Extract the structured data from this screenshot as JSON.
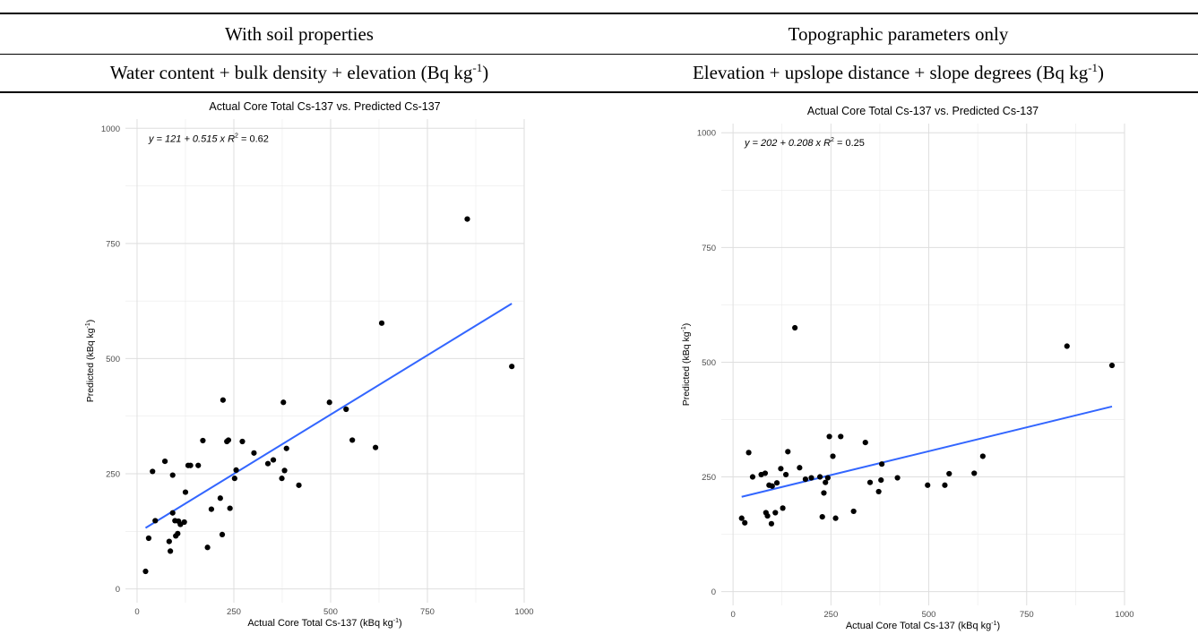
{
  "table": {
    "col1_header": "With soil properties",
    "col2_header": "Topographic parameters only",
    "col1_model": {
      "text": "Water content + bulk density + elevation (Bq kg",
      "sup": "-1",
      "close": ")"
    },
    "col2_model": {
      "text": "Elevation + upslope distance + slope degrees (Bq kg",
      "sup": "-1",
      "close": ")"
    }
  },
  "chart_data": [
    {
      "type": "scatter",
      "title": "Actual Core Total Cs-137 vs. Predicted Cs-137",
      "xlabel": {
        "text": "Actual Core Total Cs-137 (kBq kg",
        "sup": "-1",
        "close": ")"
      },
      "ylabel": {
        "text": "Predicted (kBq kg",
        "sup": "-1",
        "close": ")"
      },
      "xlim": [
        -30,
        1000
      ],
      "ylim": [
        -30,
        1020
      ],
      "xticks": [
        0,
        250,
        500,
        750,
        1000
      ],
      "yticks": [
        0,
        250,
        500,
        750,
        1000
      ],
      "grid": true,
      "equation": {
        "pre": "y = 121 + 0.515 x",
        "r2_label": "R",
        "r2_sup": "2",
        "r2_value": " = 0.62"
      },
      "fit": {
        "intercept": 121,
        "slope": 0.515,
        "x_range": [
          22,
          968
        ],
        "color": "#3366FF"
      },
      "points": [
        [
          22,
          38
        ],
        [
          30,
          110
        ],
        [
          40,
          255
        ],
        [
          47,
          148
        ],
        [
          72,
          277
        ],
        [
          83,
          103
        ],
        [
          86,
          82
        ],
        [
          92,
          165
        ],
        [
          92,
          247
        ],
        [
          98,
          148
        ],
        [
          100,
          115
        ],
        [
          105,
          120
        ],
        [
          107,
          147
        ],
        [
          112,
          140
        ],
        [
          122,
          145
        ],
        [
          125,
          210
        ],
        [
          132,
          268
        ],
        [
          138,
          268
        ],
        [
          158,
          268
        ],
        [
          170,
          322
        ],
        [
          182,
          90
        ],
        [
          192,
          173
        ],
        [
          215,
          197
        ],
        [
          220,
          118
        ],
        [
          222,
          410
        ],
        [
          232,
          320
        ],
        [
          236,
          323
        ],
        [
          240,
          175
        ],
        [
          252,
          240
        ],
        [
          256,
          258
        ],
        [
          272,
          320
        ],
        [
          302,
          295
        ],
        [
          338,
          272
        ],
        [
          352,
          280
        ],
        [
          374,
          240
        ],
        [
          378,
          405
        ],
        [
          381,
          257
        ],
        [
          386,
          305
        ],
        [
          418,
          225
        ],
        [
          497,
          405
        ],
        [
          540,
          390
        ],
        [
          556,
          323
        ],
        [
          616,
          307
        ],
        [
          632,
          577
        ],
        [
          853,
          803
        ],
        [
          968,
          483
        ]
      ]
    },
    {
      "type": "scatter",
      "title": "Actual Core Total Cs-137 vs. Predicted Cs-137",
      "xlabel": {
        "text": "Actual Core Total Cs-137 (kBq kg",
        "sup": "-1",
        "close": ")"
      },
      "ylabel": {
        "text": "Predicted (kBq kg",
        "sup": "-1",
        "close": ")"
      },
      "xlim": [
        -30,
        1000
      ],
      "ylim": [
        -30,
        1020
      ],
      "xticks": [
        0,
        250,
        500,
        750,
        1000
      ],
      "yticks": [
        0,
        250,
        500,
        750,
        1000
      ],
      "grid": true,
      "equation": {
        "pre": "y = 202 + 0.208 x",
        "r2_label": "R",
        "r2_sup": "2",
        "r2_value": " = 0.25"
      },
      "fit": {
        "intercept": 202,
        "slope": 0.208,
        "x_range": [
          22,
          968
        ],
        "color": "#3366FF"
      },
      "points": [
        [
          22,
          160
        ],
        [
          30,
          150
        ],
        [
          40,
          303
        ],
        [
          50,
          250
        ],
        [
          72,
          255
        ],
        [
          82,
          258
        ],
        [
          84,
          172
        ],
        [
          88,
          165
        ],
        [
          92,
          232
        ],
        [
          98,
          148
        ],
        [
          100,
          230
        ],
        [
          108,
          172
        ],
        [
          112,
          237
        ],
        [
          122,
          268
        ],
        [
          127,
          182
        ],
        [
          135,
          255
        ],
        [
          140,
          305
        ],
        [
          158,
          575
        ],
        [
          170,
          270
        ],
        [
          185,
          245
        ],
        [
          200,
          248
        ],
        [
          222,
          250
        ],
        [
          228,
          163
        ],
        [
          232,
          215
        ],
        [
          236,
          238
        ],
        [
          242,
          248
        ],
        [
          246,
          338
        ],
        [
          255,
          295
        ],
        [
          262,
          160
        ],
        [
          275,
          338
        ],
        [
          308,
          175
        ],
        [
          338,
          325
        ],
        [
          350,
          238
        ],
        [
          372,
          218
        ],
        [
          378,
          243
        ],
        [
          380,
          278
        ],
        [
          420,
          248
        ],
        [
          497,
          232
        ],
        [
          541,
          232
        ],
        [
          552,
          257
        ],
        [
          616,
          258
        ],
        [
          638,
          295
        ],
        [
          853,
          535
        ],
        [
          968,
          493
        ]
      ]
    }
  ]
}
